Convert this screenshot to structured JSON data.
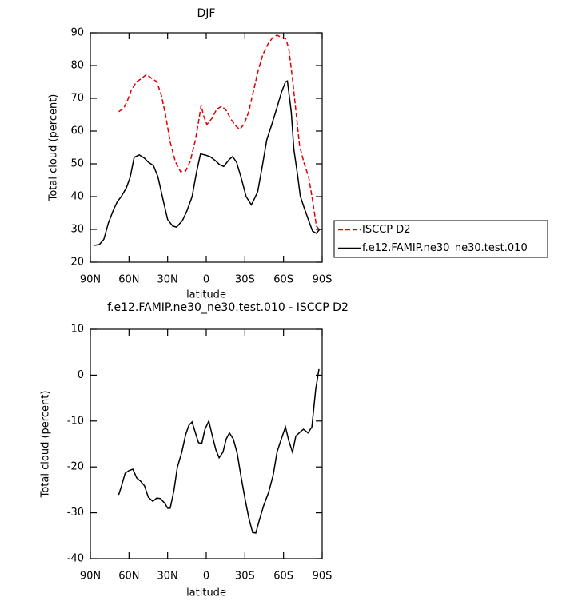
{
  "chart_data": [
    {
      "type": "line",
      "title": "DJF",
      "xlabel": "latitude",
      "ylabel": "Total cloud (percent)",
      "xlim": [
        90,
        -90
      ],
      "xticks": [
        {
          "value": 90,
          "label": "90N"
        },
        {
          "value": 60,
          "label": "60N"
        },
        {
          "value": 30,
          "label": "30N"
        },
        0,
        {
          "value": -30,
          "label": "30S"
        },
        {
          "value": -60,
          "label": "60S"
        },
        {
          "value": -90,
          "label": "90S"
        }
      ],
      "ylim": [
        20,
        90
      ],
      "yticks": [
        20,
        30,
        40,
        50,
        60,
        70,
        80,
        90
      ],
      "legend": "right",
      "series": [
        {
          "name": "ISCCP D2",
          "color": "#e00000",
          "dash": "dashed",
          "x": [
            68,
            64,
            61,
            58,
            54,
            50,
            46.5,
            43,
            38.5,
            35,
            31.5,
            28,
            24,
            20,
            16,
            12.5,
            8.5,
            5.5,
            4,
            2,
            -0.5,
            -4.5,
            -8,
            -12,
            -15.5,
            -19,
            -23,
            -26,
            -29.5,
            -33,
            -36.5,
            -40.5,
            -44,
            -48,
            -51.5,
            -55,
            -58.5,
            -61.5,
            -64,
            -67,
            -70,
            -72.5,
            -76,
            -79.5,
            -82.5,
            -85.5,
            -88
          ],
          "values": [
            65.9,
            67,
            69.5,
            72.7,
            75.1,
            76.1,
            77.3,
            76.3,
            75.1,
            71.2,
            64.6,
            56.6,
            50.7,
            47.6,
            47.8,
            50.7,
            57.1,
            63.9,
            67.8,
            64.6,
            62,
            63.9,
            66.6,
            67.6,
            66.3,
            63.7,
            61.5,
            60.5,
            62.2,
            65.9,
            72,
            78.8,
            83.4,
            86.6,
            88.5,
            89.3,
            88.5,
            88.3,
            85.4,
            75.9,
            64.6,
            55.4,
            50.2,
            45.9,
            39,
            31,
            29.8
          ]
        },
        {
          "name": "f.e12.FAMIP.ne30_ne30.test.010",
          "color": "#000000",
          "dash": "solid",
          "x": [
            87.5,
            83,
            79.5,
            76,
            72,
            69,
            66,
            62,
            59,
            56,
            52,
            48,
            45,
            41,
            37.5,
            33.5,
            30,
            26,
            23,
            18.5,
            15,
            11,
            7.5,
            4.5,
            1,
            -3,
            -7,
            -10.5,
            -13.5,
            -18,
            -20.5,
            -23.5,
            -27,
            -31,
            -35,
            -37,
            -40,
            -43.5,
            -47,
            -51,
            -54.5,
            -58.5,
            -61.5,
            -63,
            -66,
            -68,
            -71,
            -73,
            -76,
            -79.5,
            -82.5,
            -85.5,
            -88
          ],
          "values": [
            25.1,
            25.4,
            27,
            32,
            36,
            38.5,
            40,
            42.7,
            46,
            52,
            52.7,
            51.7,
            50.5,
            49.5,
            46,
            39,
            33,
            31,
            30.7,
            32.7,
            35.6,
            40,
            47.5,
            53,
            52.7,
            52.2,
            51,
            49.7,
            49.2,
            51.4,
            52.2,
            50.5,
            45.9,
            40,
            37.5,
            39,
            41.5,
            49.3,
            57.3,
            62.2,
            66.6,
            72,
            75,
            75.3,
            65.9,
            54.4,
            46.3,
            40.2,
            36.6,
            32.7,
            29.5,
            28.8,
            30
          ]
        }
      ]
    },
    {
      "type": "line",
      "title": "f.e12.FAMIP.ne30_ne30.test.010 - ISCCP D2",
      "xlabel": "latitude",
      "ylabel": "Total cloud (percent)",
      "xlim": [
        90,
        -90
      ],
      "xticks": [
        {
          "value": 90,
          "label": "90N"
        },
        {
          "value": 60,
          "label": "60N"
        },
        {
          "value": 30,
          "label": "30N"
        },
        0,
        {
          "value": -30,
          "label": "30S"
        },
        {
          "value": -60,
          "label": "60S"
        },
        {
          "value": -90,
          "label": "90S"
        }
      ],
      "ylim": [
        -40,
        10
      ],
      "yticks": [
        -40,
        -30,
        -20,
        -10,
        0,
        10
      ],
      "series": [
        {
          "color": "#000000",
          "dash": "solid",
          "x": [
            68,
            66,
            63,
            60,
            57,
            54,
            51,
            48,
            45,
            41.5,
            38.5,
            35.5,
            32,
            30,
            28,
            25,
            22.5,
            19,
            16,
            13.5,
            11,
            8.5,
            6,
            3.5,
            1,
            -2,
            -4.5,
            -7.5,
            -10,
            -13,
            -15.5,
            -18,
            -21,
            -24,
            -27,
            -30.5,
            -33,
            -36,
            -38.5,
            -41,
            -44.5,
            -48.5,
            -52,
            -55,
            -58.5,
            -61.5,
            -64,
            -67,
            -69.5,
            -72.5,
            -75.5,
            -79,
            -82,
            -85,
            -87.5
          ],
          "values": [
            -26.1,
            -24.3,
            -21.4,
            -20.8,
            -20.5,
            -22.4,
            -23.1,
            -24.1,
            -26.6,
            -27.5,
            -26.8,
            -26.9,
            -28,
            -29,
            -29,
            -25,
            -20.1,
            -16.8,
            -13,
            -10.9,
            -10.2,
            -12.5,
            -14.7,
            -14.9,
            -11.8,
            -10,
            -13,
            -16.3,
            -18,
            -16.8,
            -13.9,
            -12.6,
            -13.9,
            -17,
            -22.1,
            -27.5,
            -31.1,
            -34.3,
            -34.4,
            -31.8,
            -28.5,
            -25.5,
            -21.7,
            -16.7,
            -13.7,
            -11.3,
            -14.2,
            -16.8,
            -13.3,
            -12.5,
            -11.8,
            -12.6,
            -11.3,
            -3.1,
            1.3
          ]
        }
      ]
    }
  ]
}
